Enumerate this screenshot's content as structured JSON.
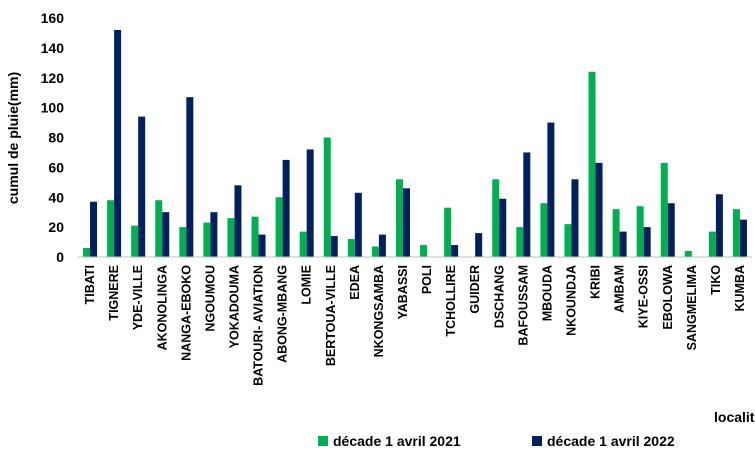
{
  "chart_data": {
    "type": "bar",
    "title": "",
    "ylabel": "cumul de pluie(mm)",
    "xlabel": "localités",
    "ylim": [
      0,
      160
    ],
    "yticks": [
      0,
      20,
      40,
      60,
      80,
      100,
      120,
      140,
      160
    ],
    "grid": false,
    "legend_position": "bottom",
    "categories": [
      "TIBATI",
      "TIGNERE",
      "YDE-VILLE",
      "AKONOLINGA",
      "NANGA-EBOKO",
      "NGOUMOU",
      "YOKADOUMA",
      "BATOURI- AVIATION",
      "ABONG-MBANG",
      "LOMIE",
      "BERTOUA-VILLE",
      "EDEA",
      "NKONGSAMBA",
      "YABASSI",
      "POLI",
      "TCHOLLIRE",
      "GUIDER",
      "DSCHANG",
      "BAFOUSSAM",
      "MBOUDA",
      "NKOUNDJA",
      "KRIBI",
      "AMBAM",
      "KIYE-OSSI",
      "EBOLOWA",
      "SANGMELIMA",
      "TIKO",
      "KUMBA"
    ],
    "series": [
      {
        "name": "décade 1 avril 2021",
        "color": "#00b050",
        "values": [
          6,
          38,
          21,
          38,
          20,
          23,
          26,
          27,
          40,
          17,
          80,
          12,
          7,
          52,
          8,
          33,
          0,
          52,
          20,
          36,
          22,
          124,
          32,
          34,
          63,
          4,
          17,
          32
        ]
      },
      {
        "name": "décade 1 avril 2022",
        "color": "#002060",
        "values": [
          37,
          152,
          94,
          30,
          107,
          30,
          48,
          15,
          65,
          72,
          14,
          43,
          15,
          46,
          0,
          8,
          16,
          39,
          70,
          90,
          52,
          63,
          17,
          20,
          36,
          0,
          42,
          25
        ]
      }
    ]
  }
}
